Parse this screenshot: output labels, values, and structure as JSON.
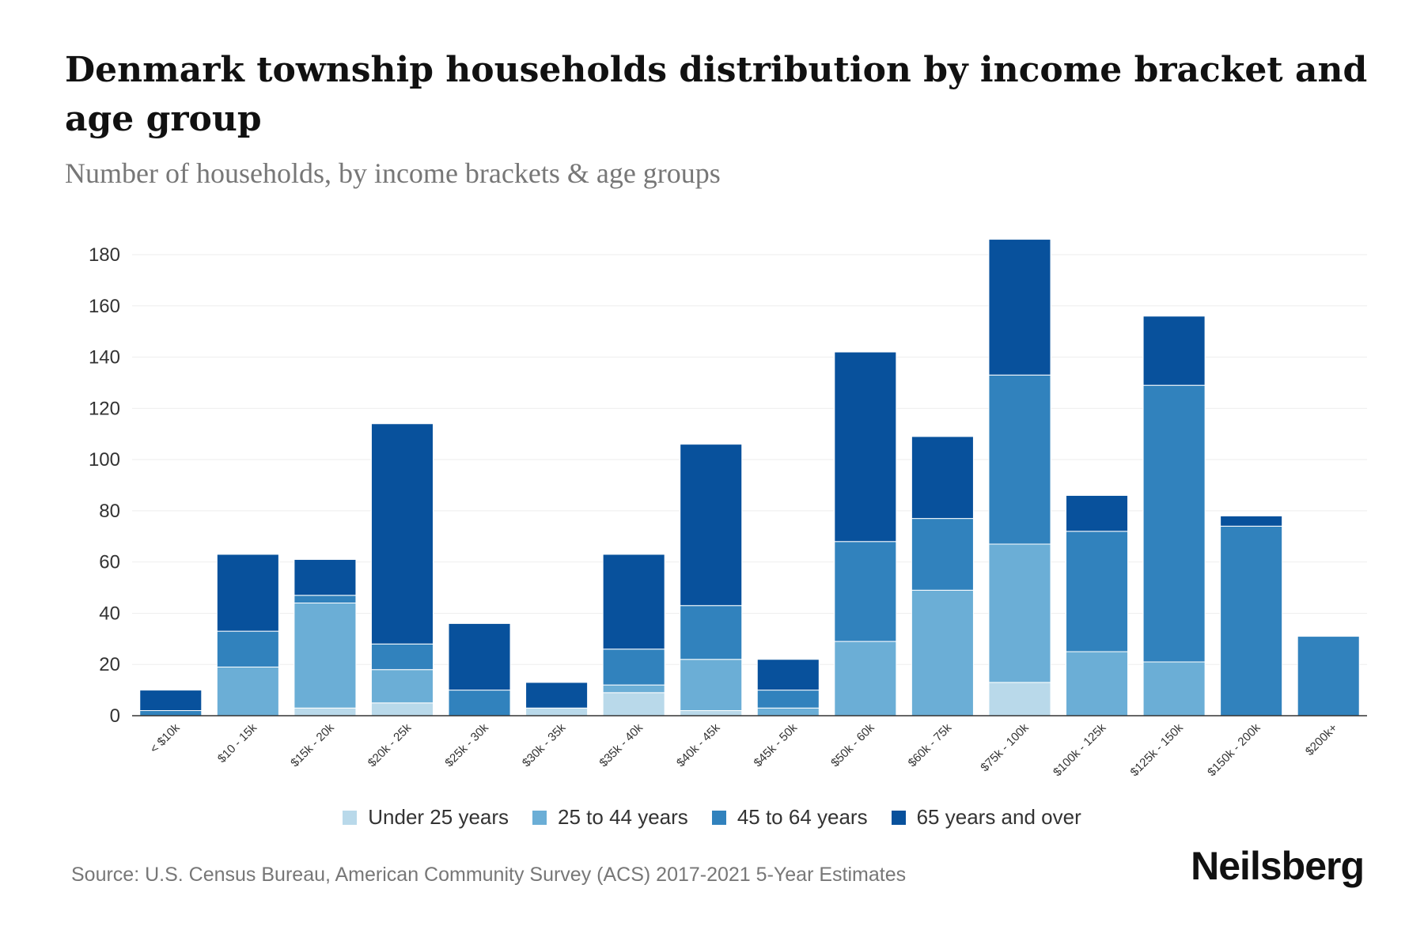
{
  "title": "Denmark township households distribution by income bracket and age group",
  "subtitle": "Number of households, by income brackets & age groups",
  "source": "Source: U.S. Census Bureau, American Community Survey (ACS) 2017-2021 5-Year Estimates",
  "logo": "Neilsberg",
  "chart_data": {
    "type": "bar",
    "stacked": true,
    "title": "Denmark township households distribution by income bracket and age group",
    "xlabel": "",
    "ylabel": "Number of households",
    "ylim": [
      0,
      180
    ],
    "yticks": [
      0,
      20,
      40,
      60,
      80,
      100,
      120,
      140,
      160,
      180
    ],
    "grid": true,
    "legend_position": "bottom",
    "categories": [
      "< $10k",
      "$10 - 15k",
      "$15k - 20k",
      "$20k - 25k",
      "$25k - 30k",
      "$30k - 35k",
      "$35k - 40k",
      "$40k - 45k",
      "$45k - 50k",
      "$50k - 60k",
      "$60k - 75k",
      "$75k - 100k",
      "$100k - 125k",
      "$125k - 150k",
      "$150k - 200k",
      "$200k+"
    ],
    "series": [
      {
        "name": "Under 25 years",
        "color": "#b9d9ea",
        "values": [
          0,
          0,
          3,
          5,
          0,
          3,
          9,
          2,
          0,
          0,
          0,
          13,
          0,
          0,
          0,
          0
        ]
      },
      {
        "name": "25 to 44 years",
        "color": "#6baed6",
        "values": [
          0,
          19,
          41,
          13,
          0,
          0,
          3,
          20,
          3,
          29,
          49,
          54,
          25,
          21,
          0,
          0
        ]
      },
      {
        "name": "45 to 64 years",
        "color": "#3182bd",
        "values": [
          2,
          14,
          3,
          10,
          10,
          0,
          14,
          21,
          7,
          39,
          28,
          66,
          47,
          108,
          74,
          31
        ]
      },
      {
        "name": "65 years and over",
        "color": "#08519c",
        "values": [
          8,
          30,
          14,
          86,
          26,
          10,
          37,
          63,
          12,
          74,
          32,
          53,
          14,
          27,
          4,
          0
        ]
      }
    ]
  }
}
